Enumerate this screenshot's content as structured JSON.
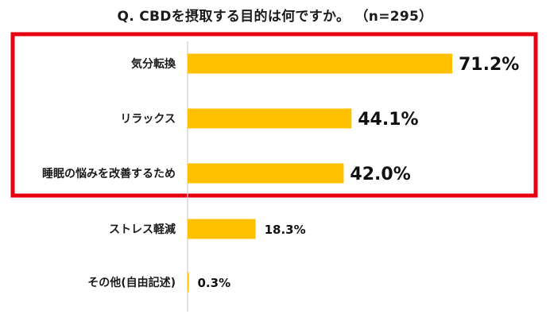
{
  "chart_data": {
    "type": "bar",
    "orientation": "horizontal",
    "title": "Q. CBDを摂取する目的は何ですか。 （n=295）",
    "categories": [
      "気分転換",
      "リラックス",
      "睡眠の悩みを改善するため",
      "ストレス軽減",
      "その他(自由記述)"
    ],
    "values": [
      71.2,
      44.1,
      42.0,
      18.3,
      0.3
    ],
    "value_labels": [
      "71.2%",
      "44.1%",
      "42.0%",
      "18.3%",
      "0.3%"
    ],
    "highlighted_count": 3,
    "xlim": [
      0,
      100
    ],
    "grid": false,
    "bar_color": "#FFC000",
    "highlight_color": "#E60012"
  }
}
